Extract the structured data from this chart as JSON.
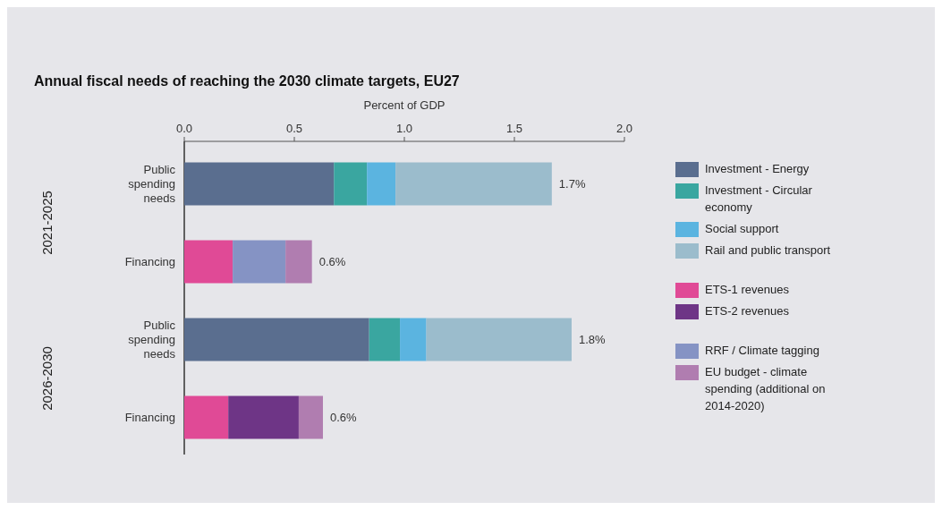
{
  "chart_data": {
    "type": "bar",
    "orientation": "horizontal",
    "stacked": true,
    "title": "Annual fiscal needs of reaching the 2030 climate targets, EU27",
    "xlabel": "Percent of GDP",
    "categories": [
      "Public spending needs",
      "Financing",
      "Public spending needs",
      "Financing"
    ],
    "annotations": [
      "2021-2025",
      "2026-2030"
    ],
    "series": [
      {
        "name": "Investment - Energy",
        "color": "#5a6e8f",
        "values": [
          0.68,
          null,
          0.84,
          null
        ]
      },
      {
        "name": "Investment - Circular economy",
        "color": "#3aa6a0",
        "values": [
          0.15,
          null,
          0.14,
          null
        ]
      },
      {
        "name": "Social support",
        "color": "#5bb4e0",
        "values": [
          0.13,
          null,
          0.12,
          null
        ]
      },
      {
        "name": "Rail and public transport",
        "color": "#9bbccc",
        "values": [
          0.71,
          null,
          0.66,
          null
        ]
      },
      {
        "name": "ETS-1 revenues",
        "color": "#e04a96",
        "values": [
          null,
          0.22,
          null,
          0.2
        ]
      },
      {
        "name": "ETS-2 revenues",
        "color": "#6e3586",
        "values": [
          null,
          null,
          null,
          0.32
        ]
      },
      {
        "name": "RRF / Climate tagging",
        "color": "#8593c4",
        "values": [
          null,
          0.24,
          null,
          null
        ]
      },
      {
        "name": "EU budget - climate spending (additional on 2014-2020)",
        "color": "#b07db0",
        "values": [
          null,
          0.12,
          null,
          0.11
        ]
      }
    ],
    "totals": [
      "1.7%",
      "0.6%",
      "1.8%",
      "0.6%"
    ],
    "xlim": [
      0,
      2
    ],
    "xticks": [
      {
        "value": 0,
        "label": "0.0"
      },
      {
        "value": 0.5,
        "label": "0.5"
      },
      {
        "value": 1,
        "label": "1.0"
      },
      {
        "value": 1.5,
        "label": "1.5"
      },
      {
        "value": 2,
        "label": "2.0"
      }
    ],
    "legend": "right",
    "grid": false
  }
}
